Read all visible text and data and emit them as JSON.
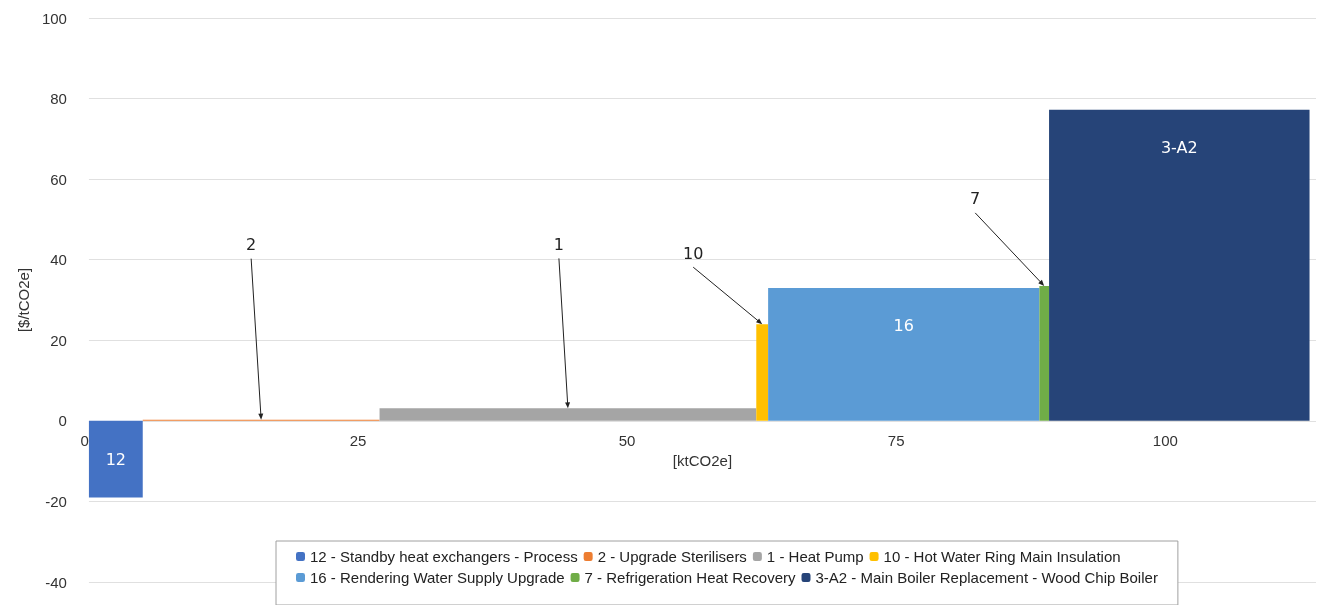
{
  "chart_data": {
    "type": "histogram",
    "xlabel": "[ktCO2e]",
    "ylabel": "[$/tCO2e]",
    "xlim": [
      0,
      114
    ],
    "xticks": [
      0,
      25,
      50,
      75,
      100
    ],
    "ylim": [
      -40,
      100
    ],
    "yticks": [
      -40,
      -20,
      0,
      20,
      40,
      60,
      80,
      100
    ],
    "grid": "y",
    "legend": "bottom",
    "bins": [
      0,
      5,
      27,
      62,
      63.1,
      88.3,
      89.2,
      113.4
    ],
    "series": [
      {
        "name": "12 - Standby heat exchangers - Process",
        "color": "#4472c4",
        "values": [
          -19,
          null,
          null,
          null,
          null,
          null,
          null
        ]
      },
      {
        "name": "2 - Upgrade Sterilisers",
        "color": "#ed7d31",
        "values": [
          null,
          0.3,
          null,
          null,
          null,
          null,
          null
        ]
      },
      {
        "name": "1 - Heat Pump",
        "color": "#a5a5a5",
        "values": [
          null,
          null,
          3.1,
          null,
          null,
          null,
          null
        ]
      },
      {
        "name": "10 - Hot Water Ring Main Insulation",
        "color": "#ffc000",
        "values": [
          null,
          null,
          null,
          24,
          null,
          null,
          null
        ]
      },
      {
        "name": "16 - Rendering Water Supply Upgrade",
        "color": "#5b9bd5",
        "values": [
          null,
          null,
          null,
          null,
          33,
          null,
          null
        ]
      },
      {
        "name": "7 - Refrigeration Heat Recovery",
        "color": "#70ad47",
        "values": [
          null,
          null,
          null,
          null,
          null,
          33.5,
          null
        ]
      },
      {
        "name": "3-A2 - Main Boiler Replacement - Wood Chip Boiler",
        "color": "#264478",
        "values": [
          null,
          null,
          null,
          null,
          null,
          null,
          77.2
        ]
      }
    ],
    "annotations": [
      {
        "text": "12",
        "x": 2.5,
        "y": -19
      },
      {
        "text": "2",
        "x": 16,
        "y": 0.3
      },
      {
        "text": "1",
        "x": 44.5,
        "y": 3.1
      },
      {
        "text": "10",
        "x": 62.55,
        "y": 24
      },
      {
        "text": "16",
        "x": 75.7,
        "y": 33
      },
      {
        "text": "7",
        "x": 88.75,
        "y": 33.5
      },
      {
        "text": "3-A2",
        "x": 101.3,
        "y": 77.2
      }
    ]
  }
}
